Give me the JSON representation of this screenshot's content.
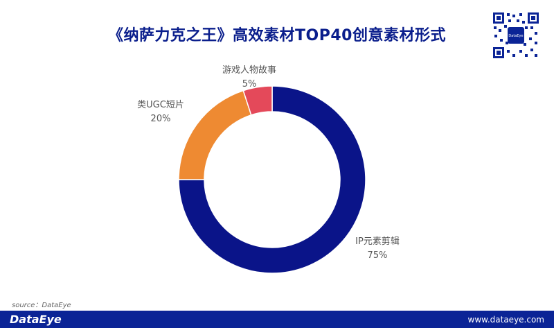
{
  "footer": {
    "brand": "DataEye",
    "url": "www.dataeye.com"
  },
  "source_text": "source：DataEye",
  "qr": {
    "center_label": "DataEye"
  },
  "colors": {
    "title": "#0a1e8c",
    "footer_bg": "#0b2496"
  },
  "chart_data": {
    "type": "pie",
    "style": "donut",
    "title": "《纳萨力克之王》高效素材TOP40创意素材形式",
    "slices": [
      {
        "label": "IP元素剪辑",
        "value": 75,
        "value_label": "75%",
        "color": "#0a1489"
      },
      {
        "label": "类UGC短片",
        "value": 20,
        "value_label": "20%",
        "color": "#ee8a32"
      },
      {
        "label": "游戏人物故事",
        "value": 5,
        "value_label": "5%",
        "color": "#e4495a"
      }
    ]
  }
}
